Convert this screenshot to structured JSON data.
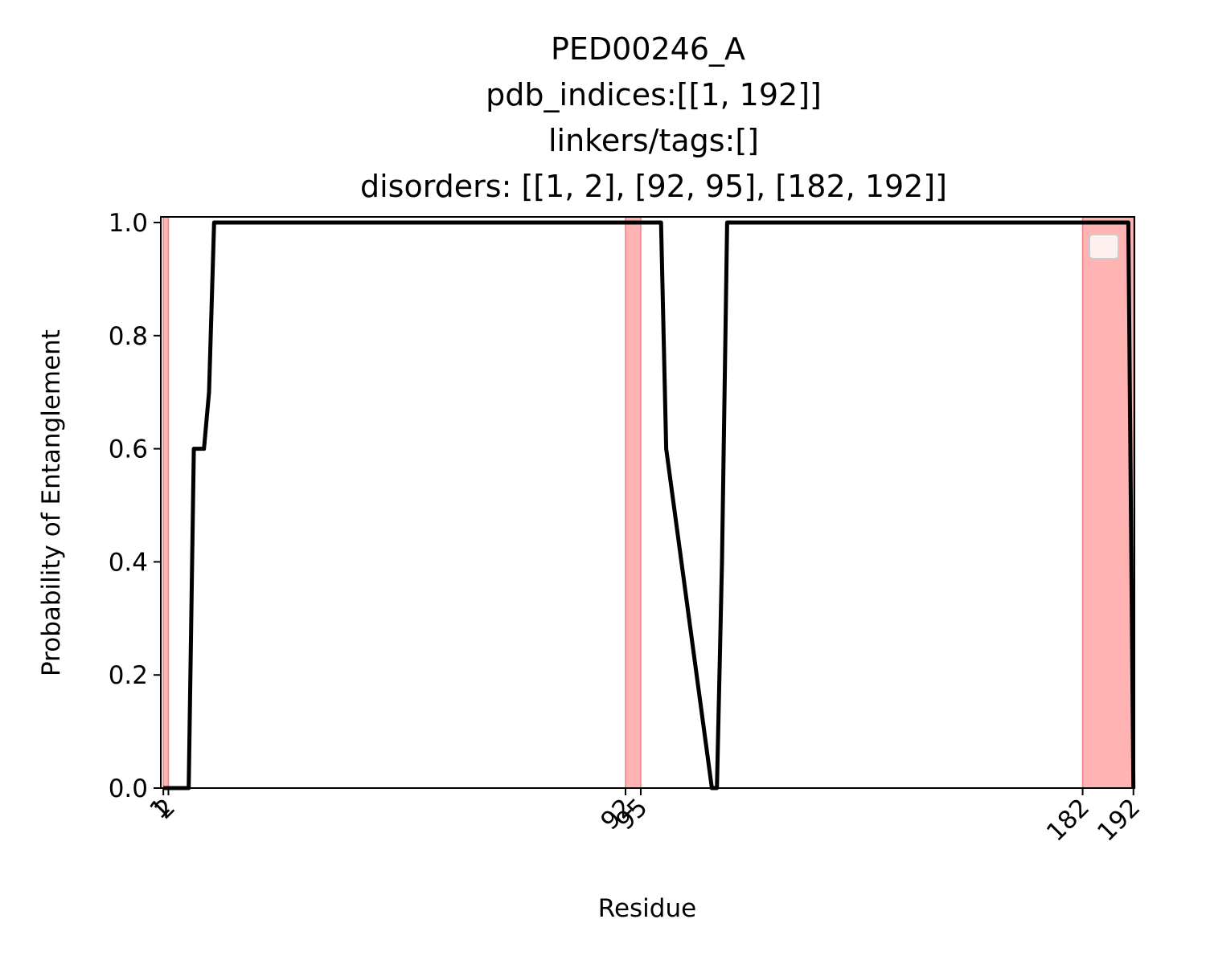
{
  "chart_data": {
    "type": "line",
    "title_lines": [
      "PED00246_A",
      "pdb_indices:[[1, 192]]",
      "linkers/tags:[]",
      "disorders: [[1, 2], [92, 95], [182, 192]]"
    ],
    "xlabel": "Residue",
    "ylabel": "Probability of Entanglement",
    "xlim": [
      0.5,
      192.2
    ],
    "ylim": [
      0,
      1
    ],
    "x_ticks": [
      1,
      2,
      92,
      95,
      182,
      192
    ],
    "x_tick_labels": [
      "1",
      "2",
      "92",
      "95",
      "182",
      "192"
    ],
    "y_ticks": [
      0,
      0.2,
      0.4,
      0.6,
      0.8,
      1.0
    ],
    "y_tick_labels": [
      "0.0",
      "0.2",
      "0.4",
      "0.6",
      "0.8",
      "1.0"
    ],
    "shaded_regions": [
      {
        "start": 1,
        "end": 2
      },
      {
        "start": 92,
        "end": 95
      },
      {
        "start": 182,
        "end": 192
      }
    ],
    "shade_color": "#ffb3b3",
    "shade_edge_color": "#f08080",
    "line_color": "#000000",
    "grid": false,
    "legend": {
      "placement": "upper-right",
      "entries": []
    },
    "series": [
      {
        "x": [
          1,
          2,
          3,
          4,
          5,
          6,
          7,
          8,
          9,
          10,
          11,
          12,
          98,
          99,
          100,
          109,
          110,
          111,
          112,
          191,
          192
        ],
        "y": [
          0,
          0,
          0,
          0,
          0,
          0,
          0.6,
          0.6,
          0.6,
          0.7,
          1.0,
          1.0,
          1.0,
          1.0,
          0.6,
          0,
          0,
          0.4,
          1.0,
          1.0,
          0
        ]
      }
    ]
  }
}
